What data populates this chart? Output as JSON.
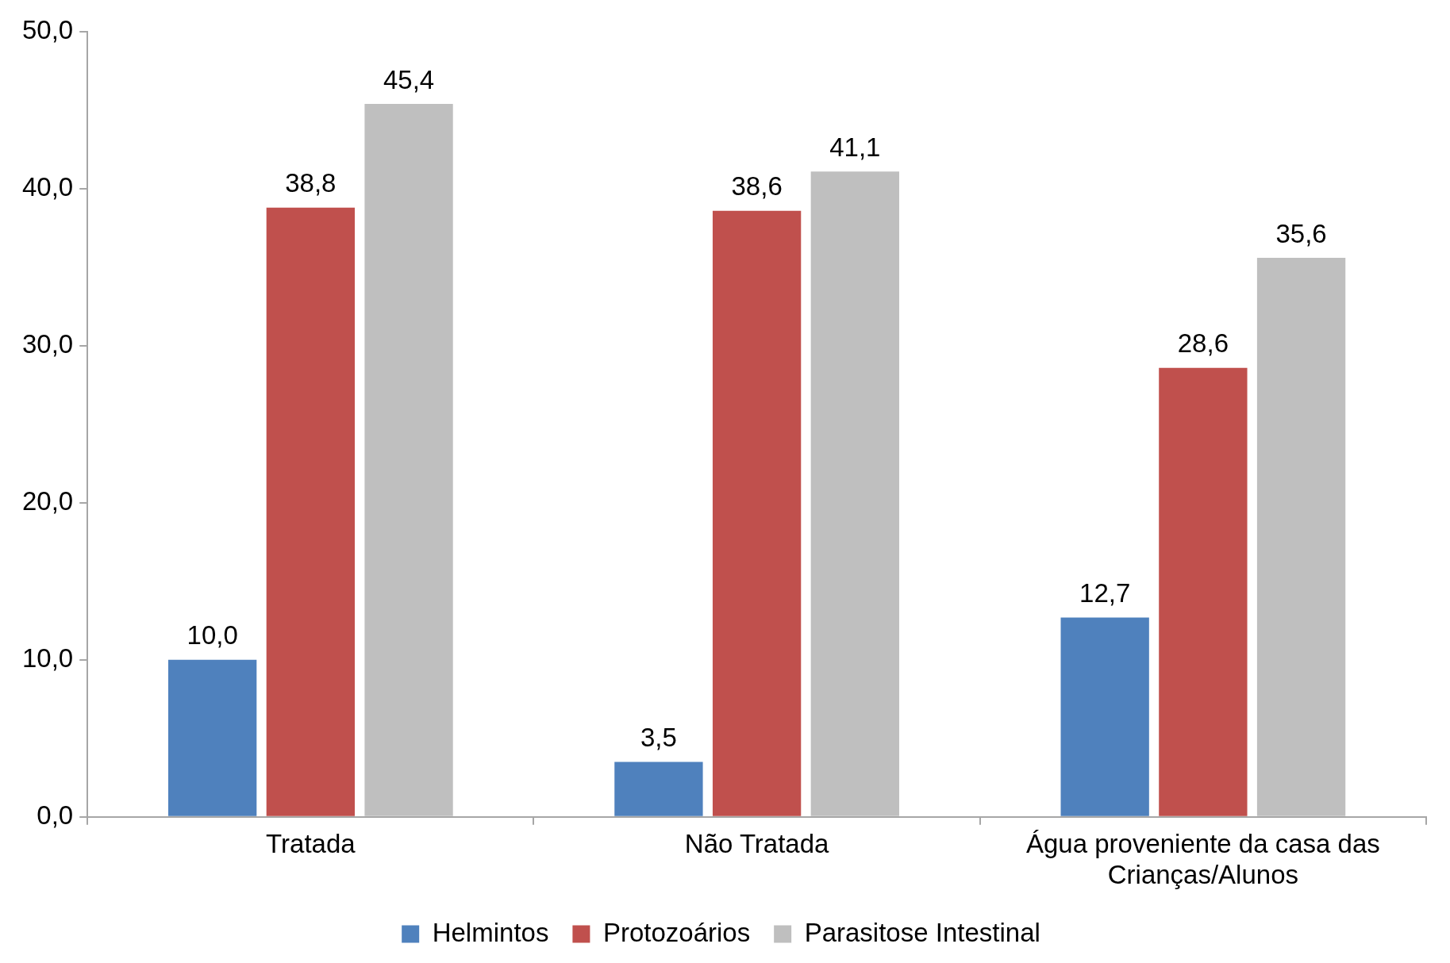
{
  "chart_data": {
    "type": "bar",
    "categories": [
      "Tratada",
      "Não Tratada",
      "Água proveniente da casa das Crianças/Alunos"
    ],
    "series": [
      {
        "name": "Helmintos",
        "color": "#4f81bd",
        "values": [
          10.0,
          3.5,
          12.7
        ],
        "value_labels": [
          "10,0",
          "3,5",
          "12,7"
        ]
      },
      {
        "name": "Protozoários",
        "color": "#c0504d",
        "values": [
          38.8,
          38.6,
          28.6
        ],
        "value_labels": [
          "38,8",
          "38,6",
          "28,6"
        ]
      },
      {
        "name": "Parasitose Intestinal",
        "color": "#bfbfbf",
        "values": [
          45.4,
          41.1,
          35.6
        ],
        "value_labels": [
          "45,4",
          "41,1",
          "35,6"
        ]
      }
    ],
    "ylim": [
      0,
      50
    ],
    "yticks": [
      {
        "value": 0,
        "label": "0,0"
      },
      {
        "value": 10,
        "label": "10,0"
      },
      {
        "value": 20,
        "label": "20,0"
      },
      {
        "value": 30,
        "label": "30,0"
      },
      {
        "value": 40,
        "label": "40,0"
      },
      {
        "value": 50,
        "label": "50,0"
      }
    ],
    "grid": false,
    "legend": "bottom"
  }
}
